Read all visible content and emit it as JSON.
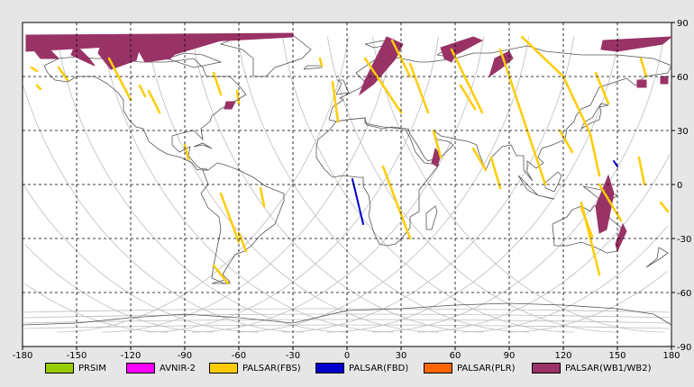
{
  "map": {
    "x_range": [
      -180,
      180
    ],
    "y_range": [
      -90,
      90
    ],
    "x_ticks": [
      -180,
      -150,
      -120,
      -90,
      -60,
      -30,
      0,
      30,
      60,
      90,
      120,
      150,
      180
    ],
    "y_ticks": [
      90,
      60,
      30,
      0,
      -30,
      -60,
      -90
    ],
    "x_tick_labels": [
      "-180",
      "-150",
      "-120",
      "-90",
      "-60",
      "-30",
      "0",
      "30",
      "60",
      "90",
      "120",
      "150",
      "180"
    ],
    "y_tick_labels": [
      "90",
      "60",
      "30",
      "0",
      "-30",
      "-60",
      "-90"
    ],
    "grid": true,
    "colors": {
      "background": "#ffffff",
      "coastline": "#555555",
      "orbit": "#bdbdbd",
      "grid": "#000000"
    }
  },
  "legend": {
    "items": [
      {
        "label": "PRSIM",
        "color": "#99cc00"
      },
      {
        "label": "AVNIR-2",
        "color": "#ff00ff"
      },
      {
        "label": "PALSAR(FBS)",
        "color": "#ffcc00"
      },
      {
        "label": "PALSAR(FBD)",
        "color": "#0000cc"
      },
      {
        "label": "PALSAR(PLR)",
        "color": "#ff6600"
      },
      {
        "label": "PALSAR(WB1/WB2)",
        "color": "#993366"
      }
    ]
  },
  "swaths": {
    "wb": [
      [
        [
          -178,
          83
        ],
        [
          -30,
          84
        ],
        [
          -30,
          82
        ],
        [
          -178,
          74
        ]
      ],
      [
        [
          -178,
          80
        ],
        [
          -170,
          70
        ],
        [
          -160,
          70
        ],
        [
          -172,
          82
        ]
      ],
      [
        [
          -155,
          82
        ],
        [
          -143,
          70
        ],
        [
          -140,
          66
        ],
        [
          -153,
          72
        ],
        [
          -150,
          80
        ]
      ],
      [
        [
          -135,
          82
        ],
        [
          -115,
          76
        ],
        [
          -117,
          69
        ],
        [
          -131,
          64
        ],
        [
          -138,
          73
        ]
      ],
      [
        [
          -120,
          82
        ],
        [
          -90,
          78
        ],
        [
          -98,
          70
        ],
        [
          -112,
          68
        ]
      ],
      [
        [
          -114,
          82
        ],
        [
          -70,
          80
        ],
        [
          -100,
          71
        ]
      ],
      [
        [
          -67,
          46
        ],
        [
          -62,
          46
        ],
        [
          -64,
          42
        ],
        [
          -68,
          42
        ]
      ],
      [
        [
          22,
          82
        ],
        [
          31,
          78
        ],
        [
          27,
          70
        ],
        [
          15,
          56
        ],
        [
          7,
          50
        ],
        [
          10,
          58
        ],
        [
          17,
          72
        ]
      ],
      [
        [
          52,
          76
        ],
        [
          70,
          82
        ],
        [
          75,
          80
        ],
        [
          60,
          72
        ],
        [
          58,
          68
        ],
        [
          54,
          70
        ]
      ],
      [
        [
          82,
          70
        ],
        [
          90,
          74
        ],
        [
          92,
          70
        ],
        [
          86,
          65
        ],
        [
          79,
          60
        ]
      ],
      [
        [
          142,
          80
        ],
        [
          180,
          82
        ],
        [
          175,
          78
        ],
        [
          150,
          74
        ],
        [
          141,
          75
        ]
      ],
      [
        [
          161,
          58
        ],
        [
          166,
          58
        ],
        [
          166,
          54
        ],
        [
          161,
          54
        ]
      ],
      [
        [
          174,
          60
        ],
        [
          178,
          60
        ],
        [
          178,
          56
        ],
        [
          174,
          56
        ]
      ],
      [
        [
          49,
          20
        ],
        [
          52,
          16
        ],
        [
          50,
          10
        ],
        [
          47,
          12
        ]
      ],
      [
        [
          -112,
          75
        ],
        [
          -106,
          73
        ],
        [
          -107,
          70
        ],
        [
          -111,
          72
        ]
      ],
      [
        [
          145,
          5
        ],
        [
          148,
          -5
        ],
        [
          144,
          -25
        ],
        [
          140,
          -27
        ],
        [
          138,
          -12
        ]
      ],
      [
        [
          153,
          -22
        ],
        [
          155,
          -26
        ],
        [
          150,
          -37
        ],
        [
          149,
          -33
        ]
      ]
    ],
    "fbs": [
      [
        [
          -175,
          65
        ],
        [
          -172,
          63
        ]
      ],
      [
        [
          -172,
          55
        ],
        [
          -170,
          53
        ]
      ],
      [
        [
          -160,
          65
        ],
        [
          -155,
          58
        ]
      ],
      [
        [
          -132,
          70
        ],
        [
          -120,
          47
        ]
      ],
      [
        [
          -115,
          55
        ],
        [
          -112,
          49
        ]
      ],
      [
        [
          -110,
          52
        ],
        [
          -104,
          40
        ]
      ],
      [
        [
          -74,
          62
        ],
        [
          -70,
          50
        ]
      ],
      [
        [
          -61,
          52
        ],
        [
          -60,
          45
        ]
      ],
      [
        [
          -90,
          22
        ],
        [
          -88,
          14
        ]
      ],
      [
        [
          -70,
          -5
        ],
        [
          -60,
          -32
        ]
      ],
      [
        [
          -60,
          -27
        ],
        [
          -56,
          -37
        ]
      ],
      [
        [
          -48,
          -2
        ],
        [
          -46,
          -12
        ]
      ],
      [
        [
          -74,
          -45
        ],
        [
          -66,
          -55
        ]
      ],
      [
        [
          -15,
          70
        ],
        [
          -14,
          66
        ]
      ],
      [
        [
          -8,
          57
        ],
        [
          -5,
          35
        ]
      ],
      [
        [
          10,
          70
        ],
        [
          30,
          40
        ]
      ],
      [
        [
          25,
          80
        ],
        [
          35,
          60
        ]
      ],
      [
        [
          20,
          10
        ],
        [
          35,
          -30
        ]
      ],
      [
        [
          35,
          67
        ],
        [
          45,
          40
        ]
      ],
      [
        [
          48,
          30
        ],
        [
          52,
          15
        ]
      ],
      [
        [
          58,
          75
        ],
        [
          75,
          40
        ]
      ],
      [
        [
          63,
          55
        ],
        [
          71,
          42
        ]
      ],
      [
        [
          70,
          20
        ],
        [
          77,
          8
        ]
      ],
      [
        [
          80,
          15
        ],
        [
          85,
          -2
        ]
      ],
      [
        [
          85,
          75
        ],
        [
          110,
          0
        ]
      ],
      [
        [
          97,
          82
        ],
        [
          120,
          60
        ],
        [
          135,
          28
        ],
        [
          140,
          5
        ]
      ],
      [
        [
          118,
          30
        ],
        [
          125,
          18
        ]
      ],
      [
        [
          138,
          62
        ],
        [
          145,
          45
        ]
      ],
      [
        [
          140,
          0
        ],
        [
          152,
          -20
        ]
      ],
      [
        [
          130,
          -10
        ],
        [
          140,
          -50
        ]
      ],
      [
        [
          130,
          -13
        ],
        [
          136,
          -29
        ]
      ],
      [
        [
          163,
          70
        ],
        [
          166,
          60
        ]
      ],
      [
        [
          162,
          15
        ],
        [
          165,
          0
        ]
      ],
      [
        [
          174,
          -10
        ],
        [
          178,
          -15
        ]
      ]
    ],
    "fbd": [
      [
        [
          3,
          3
        ],
        [
          9,
          -22
        ]
      ],
      [
        [
          148,
          13
        ],
        [
          150,
          10
        ]
      ]
    ]
  }
}
